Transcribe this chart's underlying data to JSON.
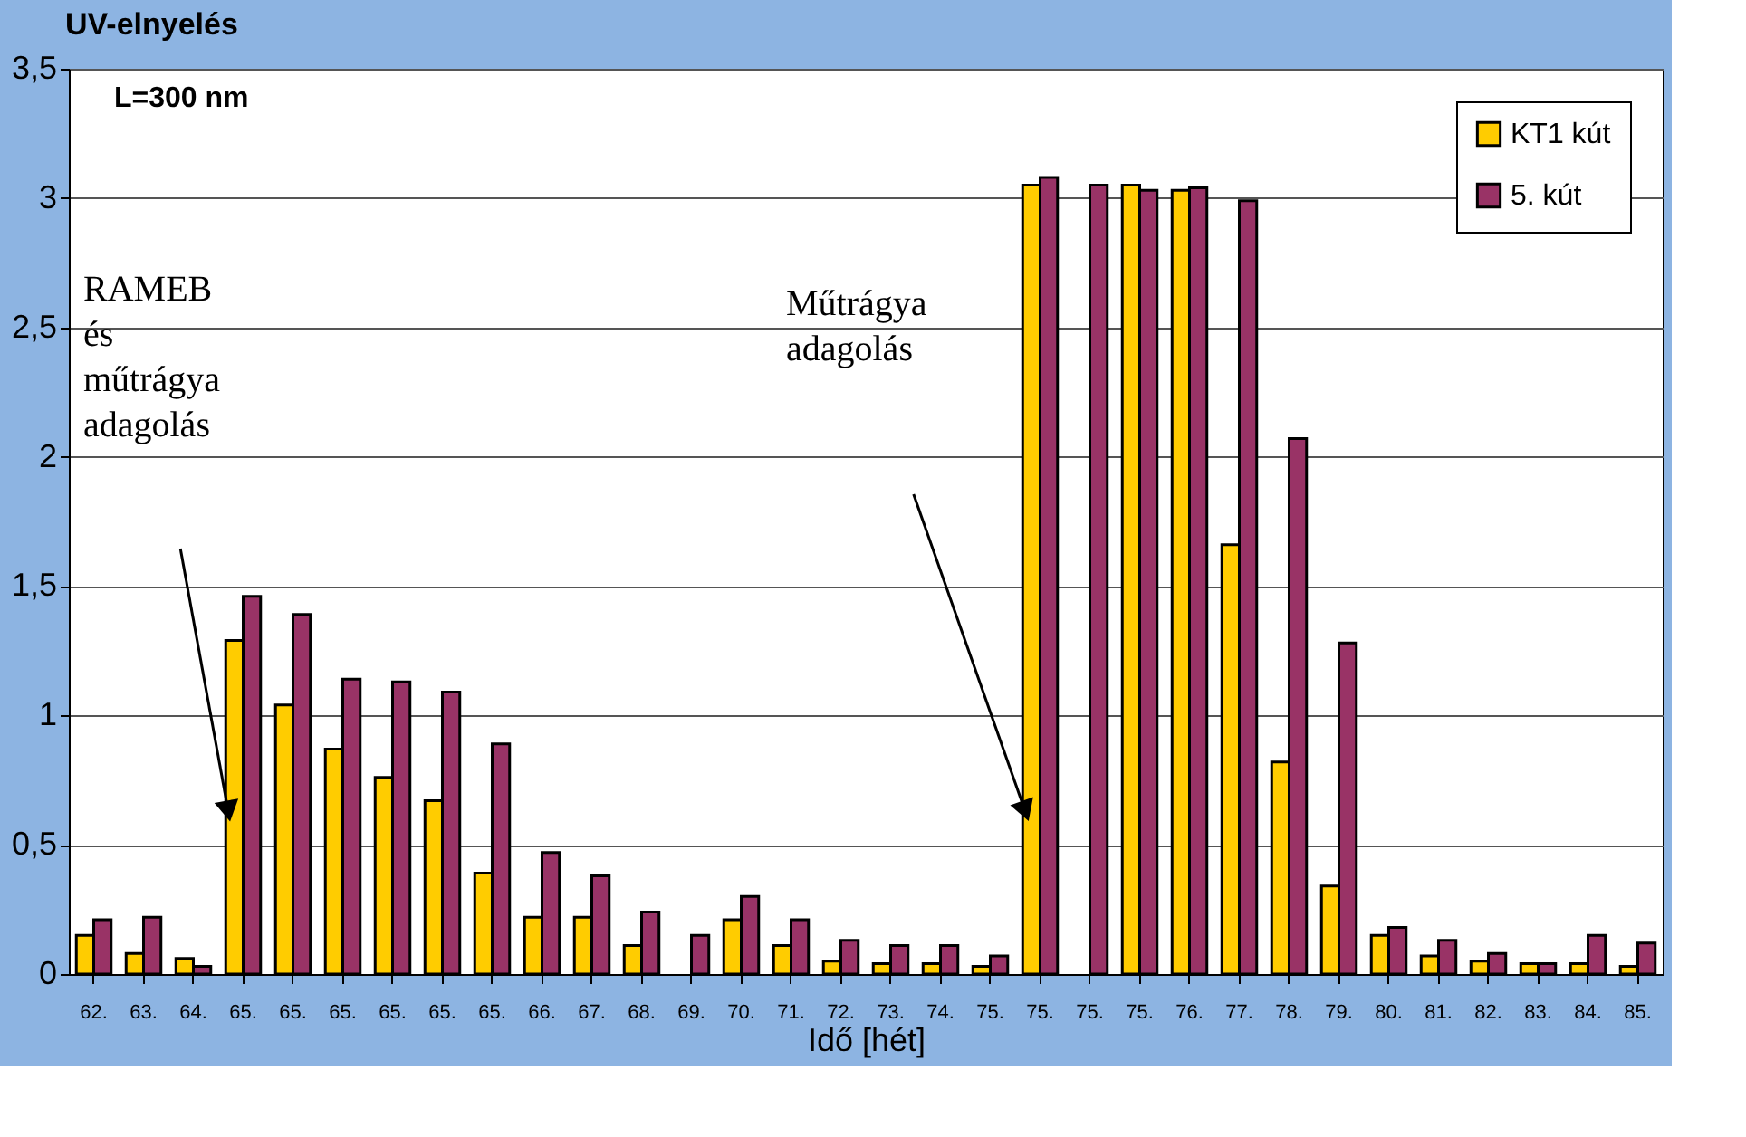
{
  "chart_data": {
    "type": "bar",
    "title": "UV-elnyelés",
    "subtitle": "L=300 nm",
    "xlabel": "Idő [hét]",
    "categories": [
      "62.",
      "63.",
      "64.",
      "65.",
      "65.",
      "65.",
      "65.",
      "65.",
      "65.",
      "66.",
      "67.",
      "68.",
      "69.",
      "70.",
      "71.",
      "72.",
      "73.",
      "74.",
      "75.",
      "75.",
      "75.",
      "75.",
      "76.",
      "77.",
      "78.",
      "79.",
      "80.",
      "81.",
      "82.",
      "83.",
      "84.",
      "85."
    ],
    "series": [
      {
        "name": "KT1 kút",
        "color": "#ffcc00",
        "values": [
          0.15,
          0.08,
          0.06,
          1.29,
          1.04,
          0.87,
          0.76,
          0.67,
          0.39,
          0.22,
          0.22,
          0.11,
          null,
          0.21,
          0.11,
          0.05,
          0.04,
          0.04,
          0.03,
          3.05,
          null,
          3.05,
          3.03,
          1.66,
          0.82,
          0.34,
          0.15,
          0.07,
          0.05,
          0.04,
          0.04,
          0.03
        ]
      },
      {
        "name": "5. kút",
        "color": "#993366",
        "values": [
          0.21,
          0.22,
          0.03,
          1.46,
          1.39,
          1.14,
          1.13,
          1.09,
          0.89,
          0.47,
          0.38,
          0.24,
          0.15,
          0.3,
          0.21,
          0.13,
          0.11,
          0.11,
          0.07,
          3.08,
          3.05,
          3.03,
          3.04,
          2.99,
          2.07,
          1.28,
          0.18,
          0.13,
          0.08,
          0.04,
          0.15,
          0.12
        ]
      }
    ],
    "ylim": [
      0,
      3.5
    ],
    "yticks": [
      0,
      {
        "value": 0.5,
        "label": "0,5"
      },
      1,
      {
        "value": 1.5,
        "label": "1,5"
      },
      2,
      {
        "value": 2.5,
        "label": "2,5"
      },
      3,
      {
        "value": 3.5,
        "label": "3,5"
      }
    ],
    "grid": "y",
    "legend": "top right",
    "annotations": [
      "RAMEB\nés\nműtrágya\nadagolás",
      "Műtrágya\nadagolás"
    ]
  }
}
